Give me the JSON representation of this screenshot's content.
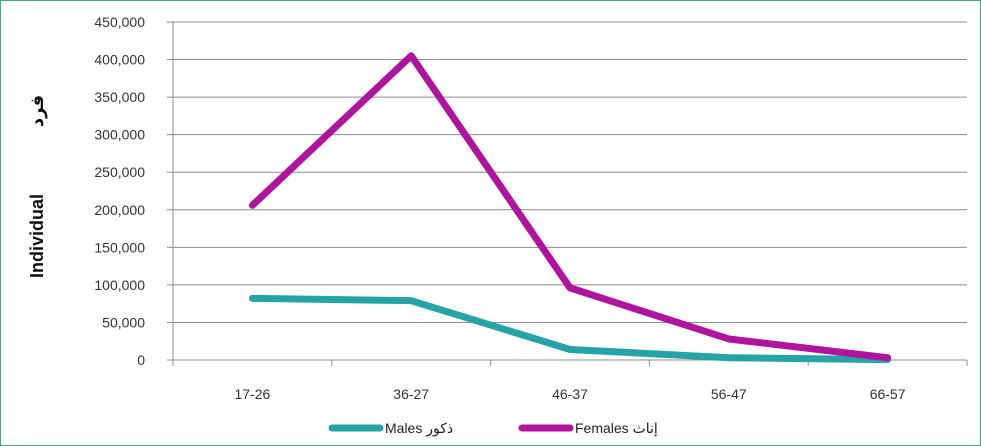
{
  "chart_data": {
    "type": "line",
    "categories": [
      "17-26",
      "36-27",
      "46-37",
      "56-47",
      "66-57"
    ],
    "series": [
      {
        "name": "Males  ذكور",
        "color": "#26a3a6",
        "values": [
          82000,
          79000,
          14000,
          3000,
          500
        ]
      },
      {
        "name": "Females  إناث",
        "color": "#b0139e",
        "values": [
          206000,
          405000,
          96000,
          28000,
          3000
        ]
      }
    ],
    "ylim": [
      0,
      450000
    ],
    "yticks": [
      "450,000",
      "400,000",
      "350,000",
      "300,000",
      "250,000",
      "200,000",
      "150,000",
      "100,000",
      "50,000",
      "0"
    ],
    "ylabel_en": "Individual",
    "ylabel_ar": "فرد",
    "grid": true,
    "legend_position": "bottom"
  }
}
